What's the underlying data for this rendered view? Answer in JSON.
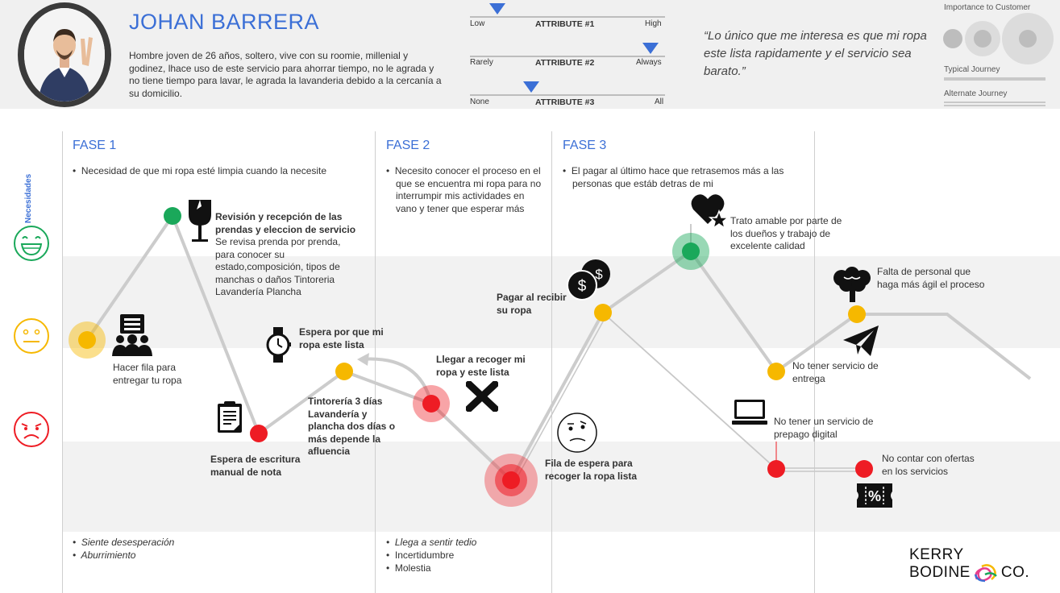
{
  "persona": {
    "name": "JOHAN BARRERA",
    "bio": "Hombre joven de 26 años, soltero, vive con su roomie, millenial y godinez, lhace uso de este servicio para ahorrar tiempo, no le agrada y no tiene tiempo para lavar, le agrada la lavanderia debido a la cercanía a su domicilio.",
    "quote": "“Lo único que me interesa es que mi ropa este lista rapidamente y el servicio sea barato.”"
  },
  "attributes": [
    {
      "title": "ATTRIBUTE #1",
      "low": "Low",
      "high": "High",
      "value": 0.15
    },
    {
      "title": "ATTRIBUTE #2",
      "low": "Rarely",
      "high": "Always",
      "value": 0.92
    },
    {
      "title": "ATTRIBUTE #3",
      "low": "None",
      "high": "All",
      "value": 0.33
    }
  ],
  "legend": {
    "importance": "Importance to Customer",
    "typical": "Typical Journey",
    "alternate": "Alternate Journey"
  },
  "side": {
    "needs": "Necesidades"
  },
  "phases": [
    {
      "title": "FASE 1",
      "need": "Necesidad de que mi ropa esté limpia cuando la necesite",
      "emotions": [
        "Siente desesperación",
        "Aburrimiento"
      ]
    },
    {
      "title": "FASE 2",
      "need": "Necesito conocer el proceso en el que se encuentra mi ropa para no interrumpir mis actividades en vano y tener que esperar más",
      "emotions": [
        "Llega a sentir tedio",
        "Incertidumbre",
        "Molestia"
      ]
    },
    {
      "title": "FASE 3",
      "need": "El pagar al último hace que retrasemos más a las personas que estáb detras de mi",
      "emotions": []
    }
  ],
  "steps": {
    "s1": "Hacer fila para entregar tu ropa",
    "s2": "Revisión y recepción de las prendas y eleccion de servicio",
    "s2_detail": "Se revisa prenda por prenda, para conocer su estado,composición, tipos de manchas o daños Tintoreria Lavandería Plancha",
    "s3": "Espera de escritura manual de nota",
    "s4": "Espera por que mi ropa este lista",
    "s4_detail": "Tintorería 3 días Lavandería y plancha dos días o más depende la afluencia",
    "s5": "Llegar a recoger mi ropa y este lista",
    "s6": "Fila de espera para recoger la ropa lista",
    "s7": "Pagar al recibir su ropa",
    "s8": "Trato amable por parte de los dueños y  trabajo de excelente calidad",
    "s9": "No tener servicio de entrega",
    "s10": "Falta de personal que haga más ágil el proceso",
    "s11": "No tener un servicio de prepago digital",
    "s12": "No contar con ofertas en los servicios"
  },
  "logo": {
    "line1": "KERRY",
    "line2": "BODINE",
    "line3": "CO."
  },
  "colors": {
    "accent": "#3b6fd6",
    "green": "#1aa85a",
    "yellow": "#f6b800",
    "red": "#ee1c24"
  },
  "icons": [
    "wine-glass-icon",
    "queue-people-icon",
    "clipboard-icon",
    "watch-icon",
    "cross-icon",
    "coins-icon",
    "confused-face-icon",
    "heart-star-icon",
    "laptop-icon",
    "brain-tree-icon",
    "paper-plane-icon",
    "discount-ticket-icon"
  ]
}
